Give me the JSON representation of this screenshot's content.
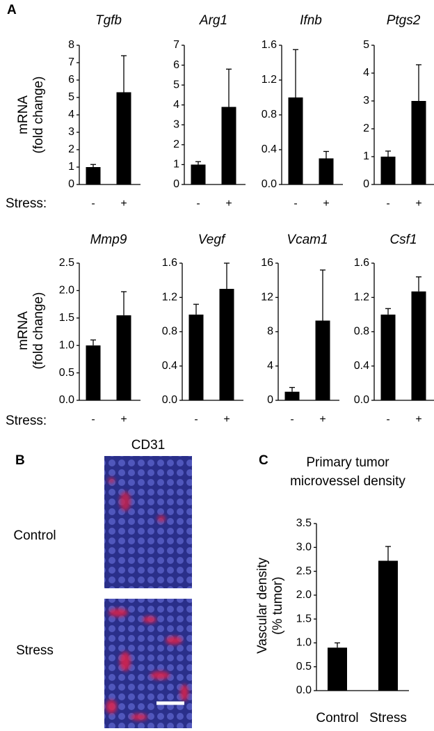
{
  "labels": {
    "panel_a": "A",
    "panel_b": "B",
    "panel_c": "C",
    "y_label": [
      "mRNA",
      "(fold change)"
    ],
    "stress_row": "Stress:",
    "image_title": "CD31",
    "image_rows": [
      "Control",
      "Stress"
    ]
  },
  "chart_data": [
    {
      "type": "bar",
      "title": "Tgfb",
      "categories": [
        "-",
        "+"
      ],
      "values": [
        1,
        5.3
      ],
      "errors": [
        0.15,
        2.1
      ],
      "ylim": [
        0,
        8
      ],
      "yticks": [
        0,
        1,
        2,
        3,
        4,
        5,
        6,
        7,
        8
      ],
      "color": "#000000"
    },
    {
      "type": "bar",
      "title": "Arg1",
      "categories": [
        "-",
        "+"
      ],
      "values": [
        1,
        3.9
      ],
      "errors": [
        0.15,
        1.9
      ],
      "ylim": [
        0,
        7
      ],
      "yticks": [
        0,
        1,
        2,
        3,
        4,
        5,
        6,
        7
      ],
      "color": "#000000"
    },
    {
      "type": "bar",
      "title": "Ifnb",
      "categories": [
        "-",
        "+"
      ],
      "values": [
        1.0,
        0.3
      ],
      "errors": [
        0.55,
        0.08
      ],
      "ylim": [
        0,
        1.6
      ],
      "yticks": [
        {
          "value": 0,
          "label": "0.0"
        },
        0.4,
        0.8,
        1.2,
        1.6
      ],
      "color": "#000000"
    },
    {
      "type": "bar",
      "title": "Ptgs2",
      "categories": [
        "-",
        "+"
      ],
      "values": [
        1,
        3.0
      ],
      "errors": [
        0.2,
        1.3
      ],
      "ylim": [
        0,
        5
      ],
      "yticks": [
        0,
        1,
        2,
        3,
        4,
        5
      ],
      "color": "#000000"
    },
    {
      "type": "bar",
      "title": "Mmp9",
      "categories": [
        "-",
        "+"
      ],
      "values": [
        1.0,
        1.55
      ],
      "errors": [
        0.1,
        0.43
      ],
      "ylim": [
        0,
        2.5
      ],
      "yticks": [
        {
          "value": 0,
          "label": "0.0"
        },
        0.5,
        {
          "value": 1,
          "label": "1.0"
        },
        1.5,
        {
          "value": 2,
          "label": "2.0"
        },
        2.5
      ],
      "color": "#000000"
    },
    {
      "type": "bar",
      "title": "Vegf",
      "categories": [
        "-",
        "+"
      ],
      "values": [
        1.0,
        1.3
      ],
      "errors": [
        0.12,
        0.3
      ],
      "ylim": [
        0,
        1.6
      ],
      "yticks": [
        {
          "value": 0,
          "label": "0.0"
        },
        0.4,
        0.8,
        1.2,
        1.6
      ],
      "color": "#000000"
    },
    {
      "type": "bar",
      "title": "Vcam1",
      "categories": [
        "-",
        "+"
      ],
      "values": [
        1,
        9.3
      ],
      "errors": [
        0.5,
        5.9
      ],
      "ylim": [
        0,
        16
      ],
      "yticks": [
        0,
        4,
        8,
        12,
        16
      ],
      "color": "#000000"
    },
    {
      "type": "bar",
      "title": "Csf1",
      "categories": [
        "-",
        "+"
      ],
      "values": [
        1.0,
        1.27
      ],
      "errors": [
        0.07,
        0.17
      ],
      "ylim": [
        0,
        1.6
      ],
      "yticks": [
        {
          "value": 0,
          "label": "0.0"
        },
        0.4,
        0.8,
        1.2,
        1.6
      ],
      "color": "#000000"
    },
    {
      "type": "bar",
      "title": [
        "Primary tumor",
        "microvessel density"
      ],
      "y_label": [
        "Vascular density",
        "(% tumor)"
      ],
      "categories": [
        "Control",
        "Stress"
      ],
      "values": [
        0.9,
        2.72
      ],
      "errors": [
        0.1,
        0.3
      ],
      "ylim": [
        0,
        3.5
      ],
      "yticks": [
        {
          "value": 0,
          "label": "0.0"
        },
        0.5,
        {
          "value": 1,
          "label": "1.0"
        },
        1.5,
        {
          "value": 2,
          "label": "2.0"
        },
        2.5,
        {
          "value": 3,
          "label": "3.0"
        },
        3.5
      ],
      "color": "#000000"
    }
  ]
}
